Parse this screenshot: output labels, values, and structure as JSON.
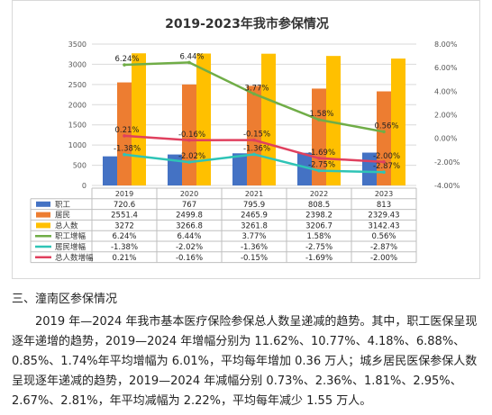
{
  "chart_data": {
    "type": "bar+line",
    "title": "2019-2023年我市参保情况",
    "categories": [
      "2019",
      "2020",
      "2021",
      "2022",
      "2023"
    ],
    "left_axis": {
      "min": 0,
      "max": 3500,
      "ticks": [
        "0",
        "500",
        "1000",
        "1500",
        "2000",
        "2500",
        "3000",
        "3500"
      ]
    },
    "right_axis": {
      "min": -4,
      "max": 8,
      "ticks": [
        "-4.00%",
        "-2.00%",
        "0.00%",
        "2.00%",
        "4.00%",
        "6.00%",
        "8.00%"
      ]
    },
    "bar_series": [
      {
        "name": "职工",
        "color": "#4472c4",
        "values": [
          720.6,
          767,
          795.9,
          808.5,
          813
        ],
        "labels": [
          "720.6",
          "767",
          "795.9",
          "808.5",
          "813"
        ]
      },
      {
        "name": "居民",
        "color": "#ed7d31",
        "values": [
          2551.4,
          2499.8,
          2465.9,
          2398.2,
          2329.43
        ],
        "labels": [
          "2551.4",
          "2499.8",
          "2465.9",
          "2398.2",
          "2329.43"
        ]
      },
      {
        "name": "总人数",
        "color": "#ffc000",
        "values": [
          3272,
          3266.8,
          3261.8,
          3206.7,
          3142.43
        ],
        "labels": [
          "3272",
          "3266.8",
          "3261.8",
          "3206.7",
          "3142.43"
        ]
      }
    ],
    "line_series": [
      {
        "name": "职工增幅",
        "color": "#70ad47",
        "values": [
          6.24,
          6.44,
          3.77,
          1.58,
          0.56
        ],
        "labels": [
          "6.24%",
          "6.44%",
          "3.77%",
          "1.58%",
          "0.56%"
        ]
      },
      {
        "name": "居民增幅",
        "color": "#2ec4b6",
        "values": [
          -1.38,
          -2.02,
          -1.36,
          -2.75,
          -2.87
        ],
        "labels": [
          "-1.38%",
          "-2.02%",
          "-1.36%",
          "-2.75%",
          "-2.87%"
        ]
      },
      {
        "name": "总人数增幅",
        "color": "#e0405e",
        "values": [
          0.21,
          -0.16,
          -0.15,
          -1.69,
          -2.0
        ],
        "labels": [
          "0.21%",
          "-0.16%",
          "-0.15%",
          "-1.69%",
          "-2.00%"
        ]
      }
    ],
    "grid": true,
    "legend": "data table below chart"
  },
  "section_heading": "三、潼南区参保情况",
  "body_text": "2019 年—2024 年我市基本医疗保险参保总人数呈递减的趋势。其中，职工医保呈现逐年递增的趋势，2019—2024 年增幅分别为 11.62%、10.77%、4.18%、6.88%、0.85%、1.74%年平均增幅为 6.01%，平均每年增加 0.36 万人；城乡居民医保参保人数呈现逐年递减的趋势，2019—2024 年减幅分别 0.73%、2.36%、1.81%、2.95%、2.67%、2.81%，年平均减幅为 2.22%，平均每年减少 1.55 万人。"
}
